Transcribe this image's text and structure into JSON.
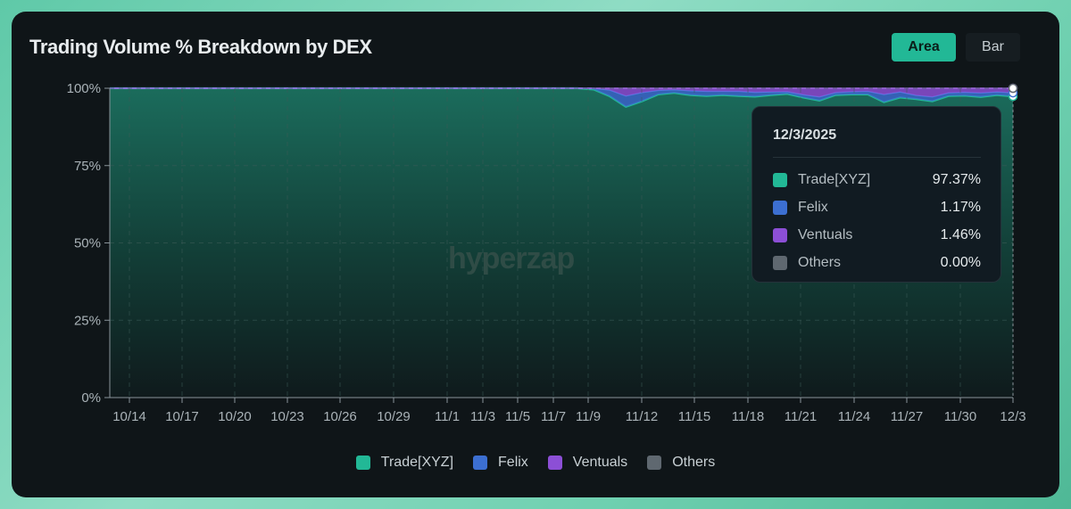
{
  "title": "Trading Volume % Breakdown by DEX",
  "toggle": {
    "area_label": "Area",
    "bar_label": "Bar",
    "selected": "Area"
  },
  "watermark": "hyperzap",
  "colors": {
    "trade_xyz": "#22b896",
    "felix": "#3c6fd1",
    "ventuals": "#8c4fd6",
    "others": "#5f6870",
    "accent": "#22b896"
  },
  "tooltip": {
    "date": "12/3/2025",
    "rows": [
      {
        "name": "Trade[XYZ]",
        "value": "97.37%"
      },
      {
        "name": "Felix",
        "value": "1.17%"
      },
      {
        "name": "Ventuals",
        "value": "1.46%"
      },
      {
        "name": "Others",
        "value": "0.00%"
      }
    ]
  },
  "legend": [
    "Trade[XYZ]",
    "Felix",
    "Ventuals",
    "Others"
  ],
  "chart_data": {
    "type": "area",
    "ylim": [
      0,
      100
    ],
    "y_ticks": [
      "0%",
      "25%",
      "50%",
      "75%",
      "100%"
    ],
    "x_ticks": [
      "10/14",
      "10/17",
      "10/20",
      "10/23",
      "10/26",
      "10/29",
      "11/1",
      "11/3",
      "11/5",
      "11/7",
      "11/9",
      "11/12",
      "11/15",
      "11/18",
      "11/21",
      "11/24",
      "11/27",
      "11/30",
      "12/3"
    ],
    "grid": true,
    "legend_position": "bottom",
    "series": [
      {
        "name": "Trade[XYZ]",
        "values": [
          100,
          100,
          100,
          100,
          100,
          100,
          100,
          100,
          100,
          100,
          100,
          100,
          100,
          100,
          100,
          100,
          100,
          100,
          100,
          100,
          100,
          100,
          100,
          100,
          100,
          100,
          100,
          100,
          100,
          100,
          99.6,
          97.4,
          94,
          95.8,
          98,
          98.5,
          97.8,
          97.5,
          97.8,
          97.5,
          97.3,
          97.8,
          98.2,
          97,
          96,
          97.8,
          98,
          98,
          95.5,
          97,
          96.5,
          95.8,
          97.5,
          97.6,
          97.2,
          97.8,
          97.37
        ]
      },
      {
        "name": "Felix",
        "values": [
          0,
          0,
          0,
          0,
          0,
          0,
          0,
          0,
          0,
          0,
          0,
          0,
          0,
          0,
          0,
          0,
          0,
          0,
          0,
          0,
          0,
          0,
          0,
          0,
          0,
          0,
          0,
          0,
          0,
          0,
          0.4,
          2,
          3.5,
          2.8,
          1.3,
          1,
          1.4,
          1.5,
          1.2,
          1.5,
          1.4,
          1,
          0.7,
          0.9,
          1.2,
          0.8,
          0.9,
          1,
          2.5,
          1.8,
          1.2,
          1.4,
          1,
          1.1,
          1.3,
          1,
          1.17
        ]
      },
      {
        "name": "Ventuals",
        "values": [
          0,
          0,
          0,
          0,
          0,
          0,
          0,
          0,
          0,
          0,
          0,
          0,
          0,
          0,
          0,
          0,
          0,
          0,
          0,
          0,
          0,
          0,
          0,
          0,
          0,
          0,
          0,
          0,
          0,
          0,
          0,
          0.6,
          2.5,
          1.4,
          0.7,
          0.5,
          0.8,
          1,
          1,
          1,
          1.3,
          1.2,
          1.1,
          2.1,
          2.8,
          1.4,
          1.1,
          1,
          2,
          1.2,
          2.3,
          2.8,
          1.5,
          1.3,
          1.5,
          1.2,
          1.46
        ]
      },
      {
        "name": "Others",
        "values": [
          0,
          0,
          0,
          0,
          0,
          0,
          0,
          0,
          0,
          0,
          0,
          0,
          0,
          0,
          0,
          0,
          0,
          0,
          0,
          0,
          0,
          0,
          0,
          0,
          0,
          0,
          0,
          0,
          0,
          0,
          0,
          0,
          0,
          0,
          0,
          0,
          0,
          0,
          0,
          0,
          0,
          0,
          0,
          0,
          0,
          0,
          0,
          0,
          0,
          0,
          0,
          0,
          0,
          0,
          0,
          0,
          0
        ]
      }
    ]
  }
}
